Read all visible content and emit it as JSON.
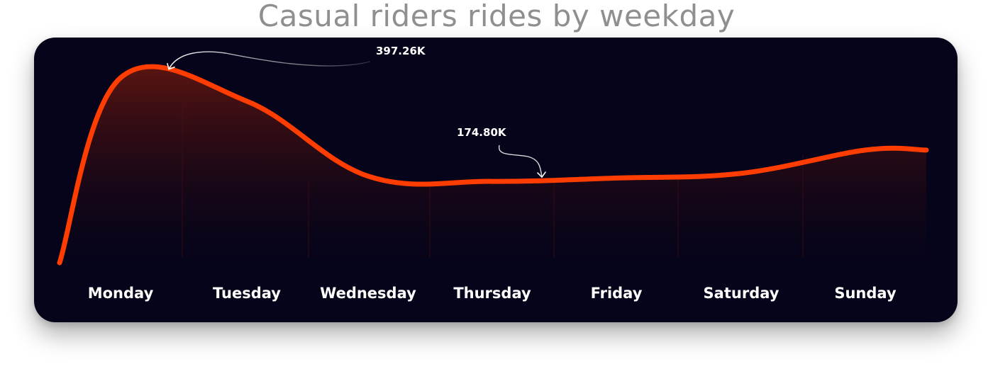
{
  "title": "Casual riders rides by weekday",
  "colors": {
    "background": "#05041a",
    "line": "#ff3d00",
    "fill_top": "#5e1510",
    "grid": "#7a7a90",
    "title": "#8f8f8f",
    "text": "#ffffff"
  },
  "chart_data": {
    "type": "area",
    "title": "Casual riders rides by weekday",
    "xlabel": "",
    "ylabel": "",
    "categories": [
      "Monday",
      "Tuesday",
      "Wednesday",
      "Thursday",
      "Friday",
      "Saturday",
      "Sunday"
    ],
    "values": [
      397260,
      347000,
      186000,
      174800,
      182000,
      192000,
      242000
    ],
    "ylim": [
      0,
      400000
    ],
    "grid": true,
    "annotations": [
      {
        "text": "397.26K",
        "category": "Monday",
        "value": 397260
      },
      {
        "text": "174.80K",
        "category": "Thursday",
        "value": 174800
      }
    ]
  }
}
